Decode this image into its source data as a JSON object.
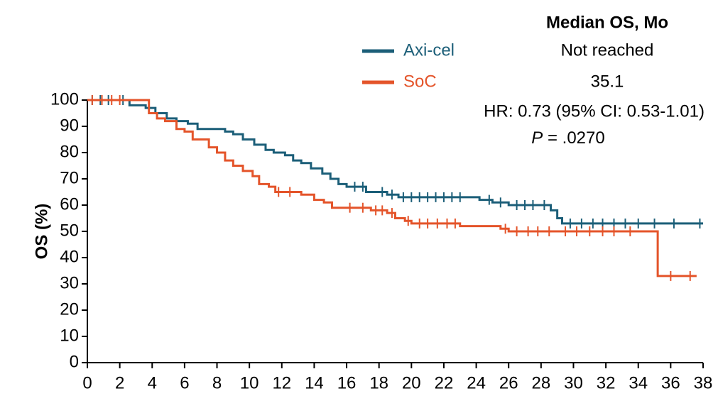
{
  "chart_data": {
    "type": "km",
    "ylabel": "OS (%)",
    "median_header": "Median OS, Mo",
    "hr_text": "HR: 0.73 (95% CI: 0.53-1.01)",
    "p_label": "P",
    "p_text": " = .0270",
    "xlim": [
      0,
      38
    ],
    "xticks": [
      0,
      2,
      4,
      6,
      8,
      10,
      12,
      14,
      16,
      18,
      20,
      22,
      24,
      26,
      28,
      30,
      32,
      34,
      36,
      38
    ],
    "ylim": [
      0,
      100
    ],
    "yticks": [
      0,
      10,
      20,
      30,
      40,
      50,
      60,
      70,
      80,
      90,
      100
    ],
    "series": [
      {
        "name": "Axi-cel",
        "median": "Not reached",
        "color": "#1b5e78",
        "x": [
          0,
          2.6,
          3.6,
          4.2,
          4.9,
          5.5,
          6.2,
          6.8,
          8.5,
          9.0,
          9.6,
          10.3,
          11.0,
          11.5,
          12.2,
          12.7,
          13.2,
          13.8,
          14.5,
          15.0,
          15.5,
          16.0,
          17.2,
          18.5,
          19.2,
          24.2,
          25.0,
          26.0,
          28.6,
          29.0,
          29.3,
          38.0
        ],
        "values": [
          100,
          98,
          97,
          95,
          93,
          92,
          91,
          89,
          88,
          87,
          85,
          83,
          81,
          80,
          79,
          77,
          76,
          74,
          72,
          70,
          68,
          67,
          65,
          64,
          63,
          62,
          61,
          60,
          58,
          55,
          53,
          53
        ],
        "censored": [
          0.3,
          0.8,
          1.3,
          2.2,
          16.5,
          17.0,
          18.2,
          18.8,
          19.5,
          20.0,
          20.5,
          21.0,
          21.5,
          22.0,
          22.5,
          23.0,
          24.8,
          25.5,
          26.5,
          27.0,
          27.5,
          28.2,
          29.8,
          30.5,
          31.2,
          31.8,
          32.5,
          33.2,
          34.0,
          35.0,
          36.2,
          37.8
        ]
      },
      {
        "name": "SoC",
        "median": "35.1",
        "color": "#e4542a",
        "x": [
          0,
          3.8,
          4.3,
          4.8,
          5.5,
          6.0,
          6.5,
          7.5,
          8.0,
          8.5,
          9.0,
          9.6,
          10.2,
          10.6,
          11.2,
          11.6,
          13.2,
          14.0,
          14.6,
          15.1,
          17.5,
          18.5,
          19.0,
          19.6,
          20.0,
          23.0,
          25.5,
          26.0,
          35.2,
          37.6
        ],
        "values": [
          100,
          95,
          93,
          92,
          89,
          88,
          85,
          82,
          80,
          77,
          75,
          73,
          71,
          68,
          67,
          65,
          64,
          62,
          61,
          59,
          58,
          57,
          55,
          54,
          53,
          52,
          51,
          50,
          33,
          33
        ],
        "censored": [
          0.3,
          0.9,
          1.5,
          2.0,
          11.8,
          12.5,
          16.2,
          17.0,
          17.8,
          18.2,
          18.8,
          19.8,
          20.5,
          21.0,
          21.6,
          22.2,
          22.7,
          25.8,
          26.5,
          27.2,
          27.8,
          28.5,
          29.5,
          30.2,
          31.0,
          31.8,
          32.5,
          33.5,
          36.0,
          37.2
        ]
      }
    ]
  }
}
